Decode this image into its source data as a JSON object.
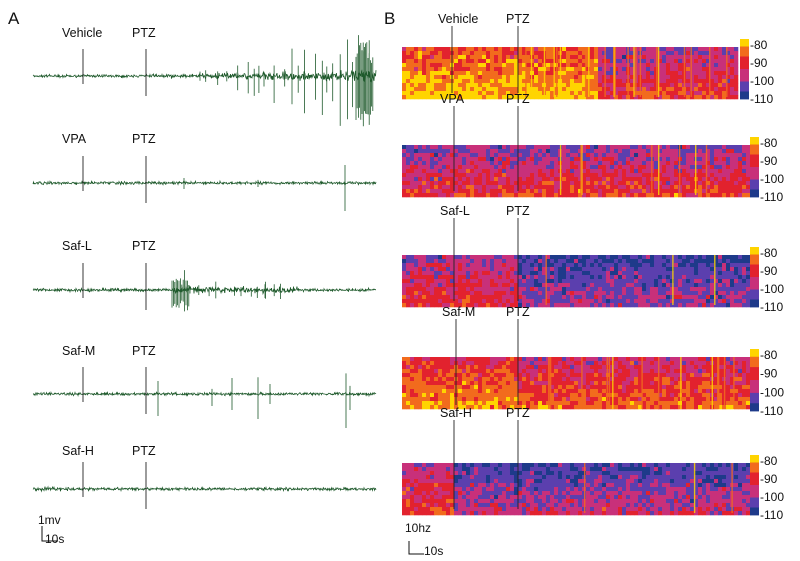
{
  "figure": {
    "panel_a_letter": "A",
    "panel_b_letter": "B",
    "marker_ptz": "PTZ",
    "scale_a_vertical": "1mv",
    "scale_a_horizontal": "10s",
    "scale_b_vertical": "10hz",
    "scale_b_horizontal": "10s"
  },
  "colors": {
    "trace": "#1f5a2c",
    "colormap": [
      "#1e3a8a",
      "#5b3fae",
      "#c8307a",
      "#e2222e",
      "#f26b1d",
      "#ffd400"
    ]
  },
  "chart_data": [
    {
      "type": "line",
      "panel": "A",
      "rows": [
        {
          "group": "Vehicle",
          "activity": "spikes increasing after PTZ"
        },
        {
          "group": "VPA",
          "activity": "low"
        },
        {
          "group": "Saf-L",
          "activity": "burst after PTZ"
        },
        {
          "group": "Saf-M",
          "activity": "sparse spikes"
        },
        {
          "group": "Saf-H",
          "activity": "flat"
        }
      ]
    },
    {
      "type": "heatmap",
      "panel": "B",
      "colorbar_ticks": [
        "-80",
        "-90",
        "-100",
        "-110"
      ],
      "rows": [
        {
          "group": "Vehicle"
        },
        {
          "group": "VPA"
        },
        {
          "group": "Saf-L"
        },
        {
          "group": "Saf-M"
        },
        {
          "group": "Saf-H"
        }
      ]
    }
  ]
}
